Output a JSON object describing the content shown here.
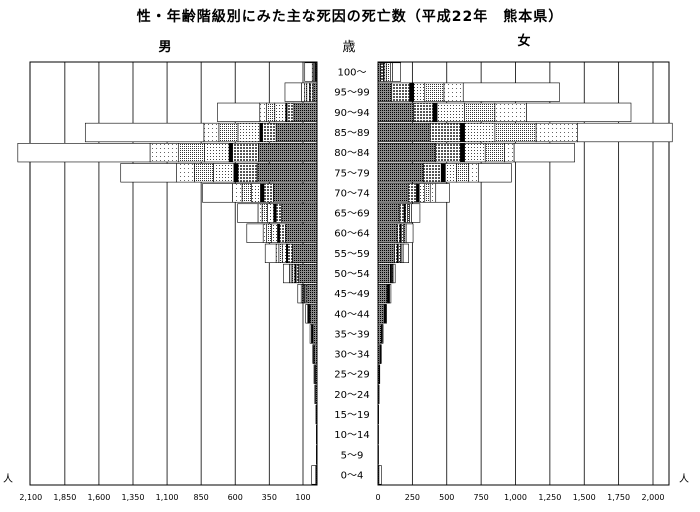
{
  "chart_data": {
    "type": "bar",
    "title": "性・年齢階級別にみた主な死因の死亡数（平成22年　熊本県）",
    "center_header": "歳",
    "unit_left": "人",
    "unit_right": "人",
    "categories": [
      "100～",
      "95～99",
      "90～94",
      "85～89",
      "80～84",
      "75～79",
      "70～74",
      "65～69",
      "60～64",
      "55～59",
      "50～54",
      "45～49",
      "40～44",
      "35～39",
      "30～34",
      "25～29",
      "20～24",
      "15～19",
      "10～14",
      "5～9",
      "0～4"
    ],
    "series_fills": [
      "#1a1a1a",
      "#9a9a9a",
      "#000000",
      "#d4d4d4",
      "#bdbdbd",
      "#efefef",
      "#ffffff"
    ],
    "male": {
      "label": "男",
      "ticks": [
        "2,100",
        "1,850",
        "1,600",
        "1,350",
        "1,100",
        "850",
        "600",
        "350",
        "100"
      ],
      "axis_values": [
        2100,
        1850,
        1600,
        1350,
        1100,
        850,
        600,
        350,
        100
      ],
      "segments": [
        [
          5,
          5,
          2,
          8,
          5,
          10,
          55
        ],
        [
          30,
          20,
          5,
          20,
          15,
          25,
          120
        ],
        [
          170,
          50,
          10,
          80,
          60,
          50,
          310
        ],
        [
          300,
          100,
          20,
          160,
          140,
          110,
          870
        ],
        [
          430,
          190,
          25,
          180,
          190,
          210,
          970
        ],
        [
          440,
          140,
          30,
          150,
          140,
          130,
          410
        ],
        [
          320,
          70,
          25,
          65,
          70,
          70,
          220
        ],
        [
          260,
          40,
          18,
          45,
          40,
          30,
          150
        ],
        [
          230,
          45,
          15,
          45,
          35,
          25,
          120
        ],
        [
          180,
          35,
          10,
          30,
          25,
          20,
          80
        ],
        [
          135,
          18,
          10,
          15,
          12,
          12,
          45
        ],
        [
          75,
          12,
          5,
          8,
          8,
          8,
          25
        ],
        [
          50,
          5,
          3,
          4,
          3,
          3,
          15
        ],
        [
          30,
          3,
          2,
          2,
          2,
          2,
          10
        ],
        [
          20,
          2,
          1,
          1,
          1,
          1,
          5
        ],
        [
          12,
          1,
          1,
          1,
          1,
          1,
          5
        ],
        [
          10,
          0,
          0,
          0,
          0,
          1,
          5
        ],
        [
          5,
          0,
          0,
          0,
          0,
          0,
          3
        ],
        [
          3,
          0,
          0,
          0,
          0,
          0,
          2
        ],
        [
          3,
          0,
          0,
          0,
          0,
          0,
          2
        ],
        [
          5,
          0,
          2,
          2,
          0,
          0,
          30
        ]
      ]
    },
    "female": {
      "label": "女",
      "ticks": [
        "0",
        "250",
        "500",
        "750",
        "1,000",
        "1,250",
        "1,500",
        "1,750",
        "2,000"
      ],
      "axis_values": [
        0,
        250,
        500,
        750,
        1000,
        1250,
        1500,
        1750,
        2000
      ],
      "segments": [
        [
          20,
          20,
          5,
          15,
          30,
          15,
          60
        ],
        [
          100,
          130,
          30,
          80,
          140,
          140,
          700
        ],
        [
          260,
          140,
          30,
          200,
          220,
          230,
          760
        ],
        [
          380,
          220,
          30,
          220,
          300,
          300,
          690
        ],
        [
          420,
          180,
          30,
          150,
          140,
          70,
          440
        ],
        [
          330,
          130,
          30,
          80,
          90,
          70,
          240
        ],
        [
          220,
          60,
          20,
          40,
          40,
          40,
          100
        ],
        [
          160,
          30,
          10,
          15,
          15,
          15,
          60
        ],
        [
          140,
          20,
          10,
          15,
          10,
          10,
          50
        ],
        [
          120,
          20,
          8,
          15,
          10,
          10,
          40
        ],
        [
          80,
          10,
          5,
          5,
          5,
          5,
          15
        ],
        [
          65,
          5,
          3,
          4,
          3,
          4,
          10
        ],
        [
          45,
          5,
          2,
          2,
          2,
          2,
          5
        ],
        [
          25,
          3,
          1,
          1,
          1,
          1,
          5
        ],
        [
          15,
          2,
          1,
          1,
          1,
          1,
          3
        ],
        [
          8,
          1,
          0,
          1,
          0,
          1,
          2
        ],
        [
          5,
          1,
          0,
          0,
          0,
          0,
          2
        ],
        [
          3,
          0,
          0,
          0,
          0,
          0,
          2
        ],
        [
          2,
          0,
          0,
          0,
          0,
          0,
          2
        ],
        [
          2,
          0,
          0,
          0,
          0,
          0,
          2
        ],
        [
          5,
          0,
          1,
          1,
          0,
          0,
          18
        ]
      ]
    }
  }
}
